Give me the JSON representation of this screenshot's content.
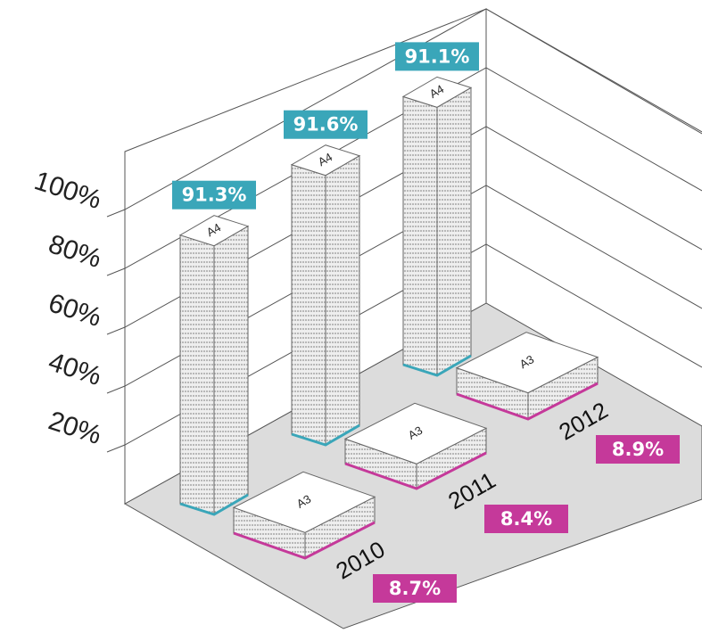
{
  "chart_data": {
    "type": "bar3d",
    "categories": [
      "2010",
      "2011",
      "2012"
    ],
    "series": [
      {
        "name": "A4",
        "color": "#3aa6b9",
        "values": [
          91.3,
          91.6,
          91.1
        ],
        "value_labels": [
          "91.3%",
          "91.6%",
          "91.1%"
        ]
      },
      {
        "name": "A3",
        "color": "#c5399a",
        "values": [
          8.7,
          8.4,
          8.9
        ],
        "value_labels": [
          "8.7%",
          "8.4%",
          "8.9%"
        ]
      }
    ],
    "ylim": [
      0,
      100
    ],
    "yticks": [
      {
        "value": 20,
        "label": "20%"
      },
      {
        "value": 40,
        "label": "40%"
      },
      {
        "value": 60,
        "label": "60%"
      },
      {
        "value": 80,
        "label": "80%"
      },
      {
        "value": 100,
        "label": "100%"
      }
    ],
    "grid": true
  }
}
